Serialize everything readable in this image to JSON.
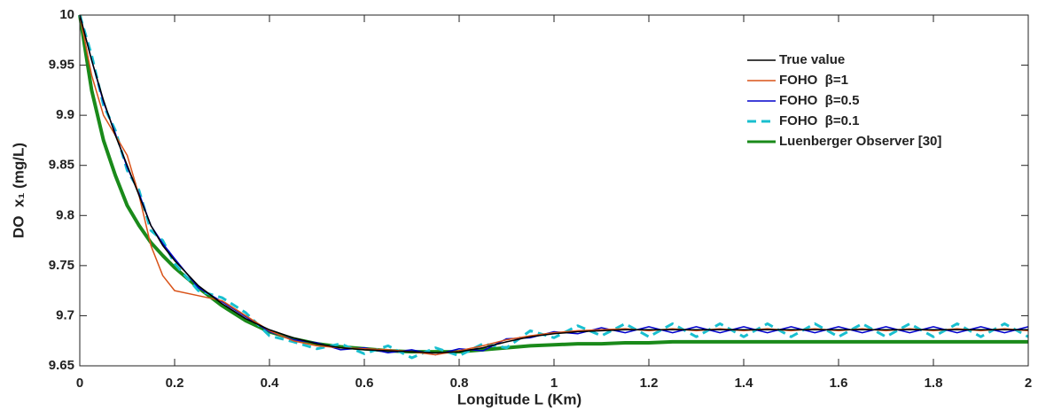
{
  "chart_data": {
    "type": "line",
    "xlabel": "Longitude L (Km)",
    "ylabel": "DO  x₁ (mg/L)",
    "x": [
      0,
      0.025,
      0.05,
      0.075,
      0.1,
      0.125,
      0.15,
      0.175,
      0.2,
      0.25,
      0.3,
      0.35,
      0.4,
      0.45,
      0.5,
      0.55,
      0.6,
      0.65,
      0.7,
      0.75,
      0.8,
      0.85,
      0.9,
      0.95,
      1,
      1.05,
      1.1,
      1.15,
      1.2,
      1.25,
      1.3,
      1.35,
      1.4,
      1.45,
      1.5,
      1.55,
      1.6,
      1.65,
      1.7,
      1.75,
      1.8,
      1.85,
      1.9,
      1.95,
      2
    ],
    "series": [
      {
        "name": "True value",
        "color": "#000000",
        "width": 1.5,
        "dash": false,
        "values": [
          10,
          9.955,
          9.915,
          9.88,
          9.85,
          9.82,
          9.79,
          9.77,
          9.755,
          9.73,
          9.712,
          9.697,
          9.686,
          9.678,
          9.672,
          9.668,
          9.666,
          9.665,
          9.664,
          9.663,
          9.664,
          9.668,
          9.674,
          9.679,
          9.682,
          9.684,
          9.685,
          9.686,
          9.686,
          9.686,
          9.686,
          9.686,
          9.686,
          9.686,
          9.686,
          9.686,
          9.686,
          9.686,
          9.686,
          9.686,
          9.686,
          9.686,
          9.686,
          9.686,
          9.686
        ]
      },
      {
        "name": "FOHO  β=1",
        "color": "#d95319",
        "width": 1.5,
        "dash": false,
        "values": [
          10,
          9.94,
          9.9,
          9.88,
          9.86,
          9.82,
          9.77,
          9.74,
          9.725,
          9.72,
          9.715,
          9.7,
          9.685,
          9.675,
          9.67,
          9.668,
          9.667,
          9.666,
          9.664,
          9.661,
          9.665,
          9.67,
          9.676,
          9.68,
          9.683,
          9.685,
          9.686,
          9.687,
          9.685,
          9.687,
          9.685,
          9.687,
          9.685,
          9.687,
          9.685,
          9.687,
          9.685,
          9.687,
          9.685,
          9.687,
          9.685,
          9.687,
          9.685,
          9.687,
          9.685
        ]
      },
      {
        "name": "FOHO  β=0.5",
        "color": "#0000cc",
        "width": 1.5,
        "dash": false,
        "values": [
          10,
          9.955,
          9.913,
          9.882,
          9.848,
          9.822,
          9.79,
          9.772,
          9.757,
          9.728,
          9.714,
          9.699,
          9.684,
          9.676,
          9.673,
          9.666,
          9.668,
          9.663,
          9.666,
          9.661,
          9.667,
          9.665,
          9.677,
          9.678,
          9.684,
          9.682,
          9.688,
          9.683,
          9.689,
          9.683,
          9.689,
          9.683,
          9.689,
          9.683,
          9.689,
          9.683,
          9.689,
          9.683,
          9.689,
          9.683,
          9.689,
          9.683,
          9.689,
          9.683,
          9.689
        ]
      },
      {
        "name": "FOHO  β=0.1",
        "color": "#19bfcf",
        "width": 3,
        "dash": true,
        "values": [
          10,
          9.96,
          9.91,
          9.885,
          9.845,
          9.825,
          9.785,
          9.775,
          9.752,
          9.725,
          9.718,
          9.703,
          9.68,
          9.674,
          9.667,
          9.672,
          9.662,
          9.67,
          9.658,
          9.668,
          9.66,
          9.672,
          9.668,
          9.685,
          9.678,
          9.69,
          9.68,
          9.692,
          9.679,
          9.692,
          9.679,
          9.692,
          9.679,
          9.692,
          9.679,
          9.692,
          9.679,
          9.692,
          9.679,
          9.692,
          9.679,
          9.692,
          9.679,
          9.692,
          9.679
        ]
      },
      {
        "name": "Luenberger Observer [30]",
        "color": "#1a8a1a",
        "width": 4,
        "dash": false,
        "values": [
          10,
          9.925,
          9.875,
          9.84,
          9.81,
          9.79,
          9.773,
          9.76,
          9.748,
          9.728,
          9.71,
          9.695,
          9.684,
          9.677,
          9.672,
          9.669,
          9.667,
          9.665,
          9.664,
          9.664,
          9.664,
          9.666,
          9.668,
          9.67,
          9.671,
          9.672,
          9.672,
          9.673,
          9.673,
          9.674,
          9.674,
          9.674,
          9.674,
          9.674,
          9.674,
          9.674,
          9.674,
          9.674,
          9.674,
          9.674,
          9.674,
          9.674,
          9.674,
          9.674,
          9.674
        ]
      }
    ],
    "xlim": [
      0,
      2
    ],
    "xticks": [
      0,
      0.2,
      0.4,
      0.6,
      0.8,
      1,
      1.2,
      1.4,
      1.6,
      1.8,
      2
    ],
    "ylim": [
      9.65,
      10
    ],
    "yticks": [
      9.65,
      9.7,
      9.75,
      9.8,
      9.85,
      9.9,
      9.95,
      10
    ],
    "grid": false,
    "legend": "upper-right"
  }
}
